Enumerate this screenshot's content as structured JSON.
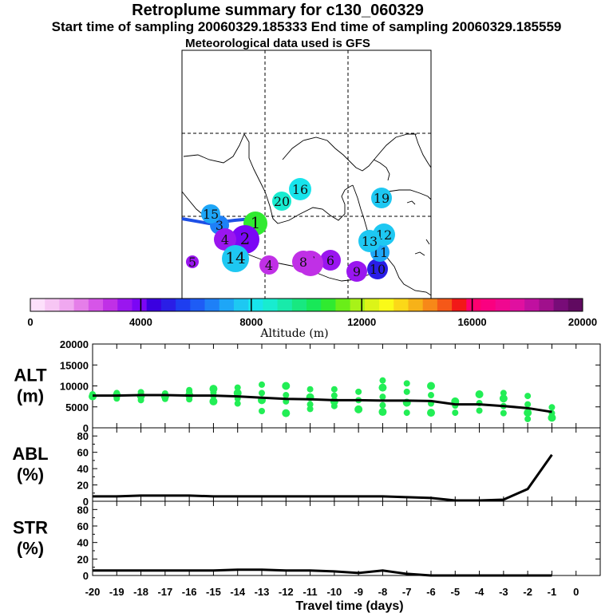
{
  "titles": {
    "main": "Retroplume summary for c130_060329",
    "sampling": "Start time of sampling 20060329.185333     End time of sampling 20060329.185559",
    "met": "Meteorological data used is GFS"
  },
  "chart_data": [
    {
      "type": "map",
      "title": "Retroplume centroid positions (labels = days back)",
      "points": [
        {
          "label": "1",
          "altitude_m": 11000
        },
        {
          "label": "2",
          "altitude_m": 4000
        },
        {
          "label": "3",
          "altitude_m": 6500
        },
        {
          "label": "4",
          "altitude_m": 3500
        },
        {
          "label": "4",
          "altitude_m": 3000
        },
        {
          "label": "5",
          "altitude_m": 3500
        },
        {
          "label": "6",
          "altitude_m": 3500
        },
        {
          "label": "7",
          "altitude_m": 3000
        },
        {
          "label": "8",
          "altitude_m": 3000
        },
        {
          "label": "9",
          "altitude_m": 3500
        },
        {
          "label": "10",
          "altitude_m": 5200
        },
        {
          "label": "11",
          "altitude_m": 7200
        },
        {
          "label": "12",
          "altitude_m": 7500
        },
        {
          "label": "13",
          "altitude_m": 7800
        },
        {
          "label": "14",
          "altitude_m": 7500
        },
        {
          "label": "15",
          "altitude_m": 7200
        },
        {
          "label": "16",
          "altitude_m": 8300
        },
        {
          "label": "19",
          "altitude_m": 7600
        },
        {
          "label": "20",
          "altitude_m": 8500
        }
      ]
    },
    {
      "type": "colorbar",
      "xlabel": "Altitude (m)",
      "range": [
        0,
        20000
      ],
      "tick_labels": [
        "0",
        "4000",
        "8000",
        "12000",
        "16000",
        "20000"
      ],
      "colors": [
        "#fde0fb",
        "#f7c6f4",
        "#f0a8f0",
        "#e57ee9",
        "#d655e8",
        "#c030e6",
        "#9a16ef",
        "#7b06f5",
        "#3a00e0",
        "#2a1ee6",
        "#1e3ef0",
        "#1e5cf5",
        "#1e80f7",
        "#1ea6f7",
        "#1ec8f2",
        "#18e4ec",
        "#18ecd0",
        "#18eaaa",
        "#18e880",
        "#18e858",
        "#30ea30",
        "#6aee18",
        "#a8f218",
        "#dcf418",
        "#fafa18",
        "#fbd818",
        "#f7b218",
        "#f78818",
        "#f55818",
        "#f21818",
        "#ff0070",
        "#fa0080",
        "#f00890",
        "#e010a0",
        "#c010a0",
        "#a0108c",
        "#780c78",
        "#600a60"
      ]
    },
    {
      "type": "scatter+line",
      "ylabel": "ALT\n(m)",
      "ylabel_top": "ALT",
      "ylabel_bottom": "(m)",
      "ylim": [
        0,
        20000
      ],
      "yticks": [
        "20000",
        "15000",
        "10000",
        "5000",
        "0"
      ],
      "line": {
        "x": [
          -20,
          -19,
          -18,
          -17,
          -16,
          -15,
          -14,
          -13,
          -12,
          -11,
          -10,
          -9,
          -8,
          -7,
          -6,
          -5,
          -4,
          -3,
          -2,
          -1
        ],
        "y": [
          7700,
          7700,
          7800,
          7800,
          7700,
          7700,
          7500,
          7200,
          6900,
          6800,
          6600,
          6600,
          6500,
          6500,
          6400,
          5600,
          5600,
          5200,
          4700,
          3800
        ]
      },
      "points": [
        [
          -20,
          7500
        ],
        [
          -20,
          8000
        ],
        [
          -19,
          7000
        ],
        [
          -19,
          7800
        ],
        [
          -19,
          8300
        ],
        [
          -18,
          6600
        ],
        [
          -18,
          7600
        ],
        [
          -18,
          8500
        ],
        [
          -17,
          6900
        ],
        [
          -17,
          7500
        ],
        [
          -17,
          8200
        ],
        [
          -16,
          6800
        ],
        [
          -16,
          7800
        ],
        [
          -16,
          8700
        ],
        [
          -16,
          9000
        ],
        [
          -15,
          6300
        ],
        [
          -15,
          7600
        ],
        [
          -15,
          8400
        ],
        [
          -15,
          9300
        ],
        [
          -14,
          5800
        ],
        [
          -14,
          7000
        ],
        [
          -14,
          8300
        ],
        [
          -14,
          9600
        ],
        [
          -13,
          4000
        ],
        [
          -13,
          6600
        ],
        [
          -13,
          8300
        ],
        [
          -13,
          10300
        ],
        [
          -12,
          3500
        ],
        [
          -12,
          6300
        ],
        [
          -12,
          7800
        ],
        [
          -12,
          10000
        ],
        [
          -11,
          4500
        ],
        [
          -11,
          5600
        ],
        [
          -11,
          7300
        ],
        [
          -11,
          9200
        ],
        [
          -10,
          5200
        ],
        [
          -10,
          6300
        ],
        [
          -10,
          7700
        ],
        [
          -10,
          9200
        ],
        [
          -9,
          4400
        ],
        [
          -9,
          6600
        ],
        [
          -9,
          8600
        ],
        [
          -8,
          3800
        ],
        [
          -8,
          5400
        ],
        [
          -8,
          7400
        ],
        [
          -8,
          9600
        ],
        [
          -8,
          11300
        ],
        [
          -7,
          3600
        ],
        [
          -7,
          6000
        ],
        [
          -7,
          8600
        ],
        [
          -7,
          10600
        ],
        [
          -6,
          3600
        ],
        [
          -6,
          5800
        ],
        [
          -6,
          7800
        ],
        [
          -6,
          10000
        ],
        [
          -5,
          3600
        ],
        [
          -5,
          5300
        ],
        [
          -5,
          6300
        ],
        [
          -4,
          4100
        ],
        [
          -4,
          5900
        ],
        [
          -4,
          8000
        ],
        [
          -3,
          3500
        ],
        [
          -3,
          5200
        ],
        [
          -3,
          7000
        ],
        [
          -3,
          8300
        ],
        [
          -2,
          2100
        ],
        [
          -2,
          3600
        ],
        [
          -2,
          5600
        ],
        [
          -2,
          7600
        ],
        [
          -1,
          2400
        ],
        [
          -1,
          3500
        ],
        [
          -1,
          4900
        ]
      ]
    },
    {
      "type": "line",
      "ylabel_top": "ABL",
      "ylabel_bottom": "(%)",
      "ylim": [
        0,
        90
      ],
      "yticks": [
        "80",
        "60",
        "40",
        "20",
        "0"
      ],
      "x": [
        -20,
        -19,
        -18,
        -17,
        -16,
        -15,
        -14,
        -13,
        -12,
        -11,
        -10,
        -9,
        -8,
        -7,
        -6,
        -5,
        -4,
        -3,
        -2,
        -1
      ],
      "y": [
        6,
        6,
        7,
        7,
        7,
        6,
        6,
        6,
        6,
        6,
        6,
        6,
        6,
        5,
        4,
        1,
        1,
        2,
        15,
        57
      ]
    },
    {
      "type": "line",
      "ylabel_top": "STR",
      "ylabel_bottom": "(%)",
      "ylim": [
        0,
        90
      ],
      "yticks": [
        "80",
        "60",
        "40",
        "20",
        "0"
      ],
      "x": [
        -20,
        -19,
        -18,
        -17,
        -16,
        -15,
        -14,
        -13,
        -12,
        -11,
        -10,
        -9,
        -8,
        -7,
        -6,
        -5,
        -4,
        -3,
        -2,
        -1
      ],
      "y": [
        6,
        6,
        6,
        6,
        6,
        6,
        7,
        7,
        6,
        6,
        5,
        3,
        6,
        2,
        0,
        0,
        0,
        0,
        0,
        0
      ],
      "xlabel": "Travel time (days)",
      "xticks": [
        "-20",
        "-19",
        "-18",
        "-17",
        "-16",
        "-15",
        "-14",
        "-13",
        "-12",
        "-11",
        "-10",
        "-9",
        "-8",
        "-7",
        "-6",
        "-5",
        "-4",
        "-3",
        "-2",
        "-1",
        "0"
      ]
    }
  ]
}
